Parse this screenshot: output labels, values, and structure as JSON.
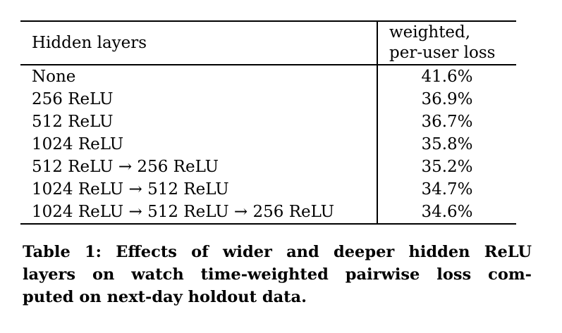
{
  "table": {
    "headers": {
      "col1": "Hidden layers",
      "col2_line1": "weighted,",
      "col2_line2": "per-user loss"
    },
    "rows": [
      {
        "layers": "None",
        "loss": "41.6%"
      },
      {
        "layers": "256 ReLU",
        "loss": "36.9%"
      },
      {
        "layers": "512 ReLU",
        "loss": "36.7%"
      },
      {
        "layers": "1024 ReLU",
        "loss": "35.8%"
      },
      {
        "layers": "512 ReLU → 256 ReLU",
        "loss": "35.2%"
      },
      {
        "layers": "1024 ReLU → 512 ReLU",
        "loss": "34.7%"
      },
      {
        "layers": "1024 ReLU → 512 ReLU → 256 ReLU",
        "loss": "34.6%"
      }
    ]
  },
  "caption": {
    "line1": "Table 1: Effects of wider and deeper hidden ReLU",
    "line2": "layers on watch time-weighted pairwise loss com-",
    "line3": "puted on next-day holdout data."
  }
}
